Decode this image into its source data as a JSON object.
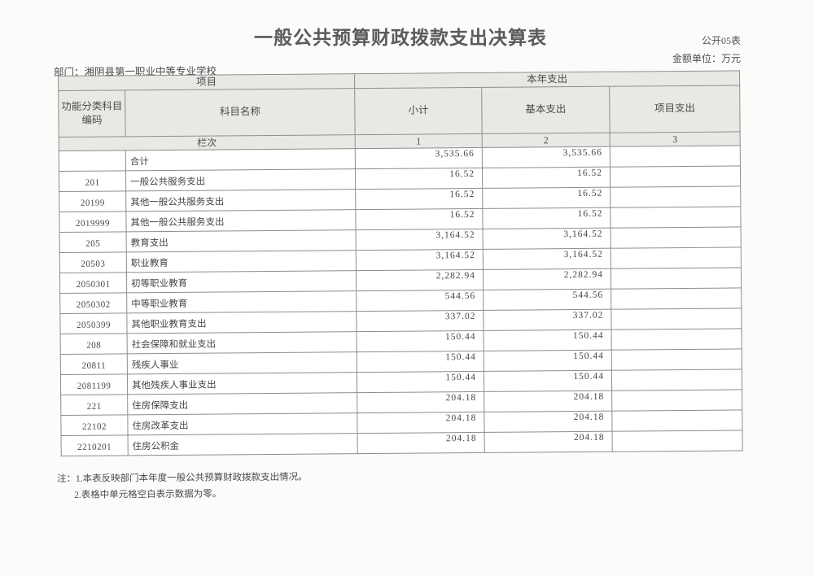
{
  "page": {
    "title": "一般公共预算财政拨款支出决算表",
    "form_code": "公开05表",
    "unit_label": "金额单位：万元",
    "department": "部门：湘阴县第一职业中等专业学校"
  },
  "table": {
    "header": {
      "project_group": "项目",
      "year_expenditure_group": "本年支出",
      "col_code_line1": "功能分类科目",
      "col_code_line2": "编码",
      "col_subject": "科目名称",
      "col_subtotal": "小计",
      "col_basic": "基本支出",
      "col_project": "项目支出",
      "row_label": "栏次",
      "col_nums": [
        "1",
        "2",
        "3"
      ]
    },
    "rows": [
      {
        "code": "",
        "name": "合计",
        "subtotal": "3,535.66",
        "basic": "3,535.66",
        "project": ""
      },
      {
        "code": "201",
        "name": "一般公共服务支出",
        "subtotal": "16.52",
        "basic": "16.52",
        "project": ""
      },
      {
        "code": "20199",
        "name": "其他一般公共服务支出",
        "subtotal": "16.52",
        "basic": "16.52",
        "project": ""
      },
      {
        "code": "2019999",
        "name": "其他一般公共服务支出",
        "subtotal": "16.52",
        "basic": "16.52",
        "project": ""
      },
      {
        "code": "205",
        "name": "教育支出",
        "subtotal": "3,164.52",
        "basic": "3,164.52",
        "project": ""
      },
      {
        "code": "20503",
        "name": "职业教育",
        "subtotal": "3,164.52",
        "basic": "3,164.52",
        "project": ""
      },
      {
        "code": "2050301",
        "name": "初等职业教育",
        "subtotal": "2,282.94",
        "basic": "2,282.94",
        "project": ""
      },
      {
        "code": "2050302",
        "name": "中等职业教育",
        "subtotal": "544.56",
        "basic": "544.56",
        "project": ""
      },
      {
        "code": "2050399",
        "name": "其他职业教育支出",
        "subtotal": "337.02",
        "basic": "337.02",
        "project": ""
      },
      {
        "code": "208",
        "name": "社会保障和就业支出",
        "subtotal": "150.44",
        "basic": "150.44",
        "project": ""
      },
      {
        "code": "20811",
        "name": "残疾人事业",
        "subtotal": "150.44",
        "basic": "150.44",
        "project": ""
      },
      {
        "code": "2081199",
        "name": "其他残疾人事业支出",
        "subtotal": "150.44",
        "basic": "150.44",
        "project": ""
      },
      {
        "code": "221",
        "name": "住房保障支出",
        "subtotal": "204.18",
        "basic": "204.18",
        "project": ""
      },
      {
        "code": "22102",
        "name": "住房改革支出",
        "subtotal": "204.18",
        "basic": "204.18",
        "project": ""
      },
      {
        "code": "2210201",
        "name": "住房公积金",
        "subtotal": "204.18",
        "basic": "204.18",
        "project": ""
      }
    ]
  },
  "notes": [
    "注：1.本表反映部门本年度一般公共预算财政拨款支出情况。",
    "2.表格中单元格空白表示数据为零。"
  ],
  "colors": {
    "border": "#8d8d8d",
    "header_fill": "#e8e9e5",
    "text": "#474747"
  }
}
